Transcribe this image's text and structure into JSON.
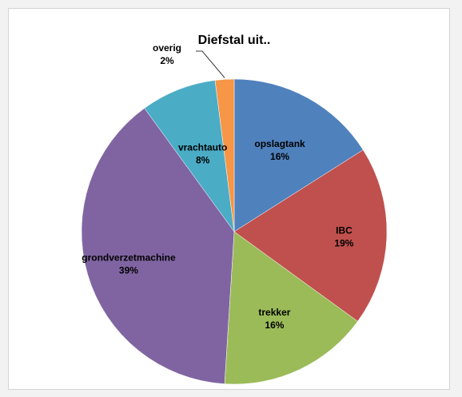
{
  "chart_data": {
    "type": "pie",
    "title": "Diefstal uit..",
    "slices": [
      {
        "label": "opslagtank",
        "value": 16,
        "percent_label": "16%",
        "color": "#4f81bd"
      },
      {
        "label": "IBC",
        "value": 19,
        "percent_label": "19%",
        "color": "#c0504d"
      },
      {
        "label": "trekker",
        "value": 16,
        "percent_label": "16%",
        "color": "#9bbb59"
      },
      {
        "label": "grondverzetmachine",
        "value": 39,
        "percent_label": "39%",
        "color": "#8064a2"
      },
      {
        "label": "vrachtauto",
        "value": 8,
        "percent_label": "8%",
        "color": "#4bacc6"
      },
      {
        "label": "overig",
        "value": 2,
        "percent_label": "2%",
        "color": "#f79646"
      }
    ],
    "legend": "none",
    "start_angle": "12 o'clock",
    "direction": "clockwise"
  }
}
